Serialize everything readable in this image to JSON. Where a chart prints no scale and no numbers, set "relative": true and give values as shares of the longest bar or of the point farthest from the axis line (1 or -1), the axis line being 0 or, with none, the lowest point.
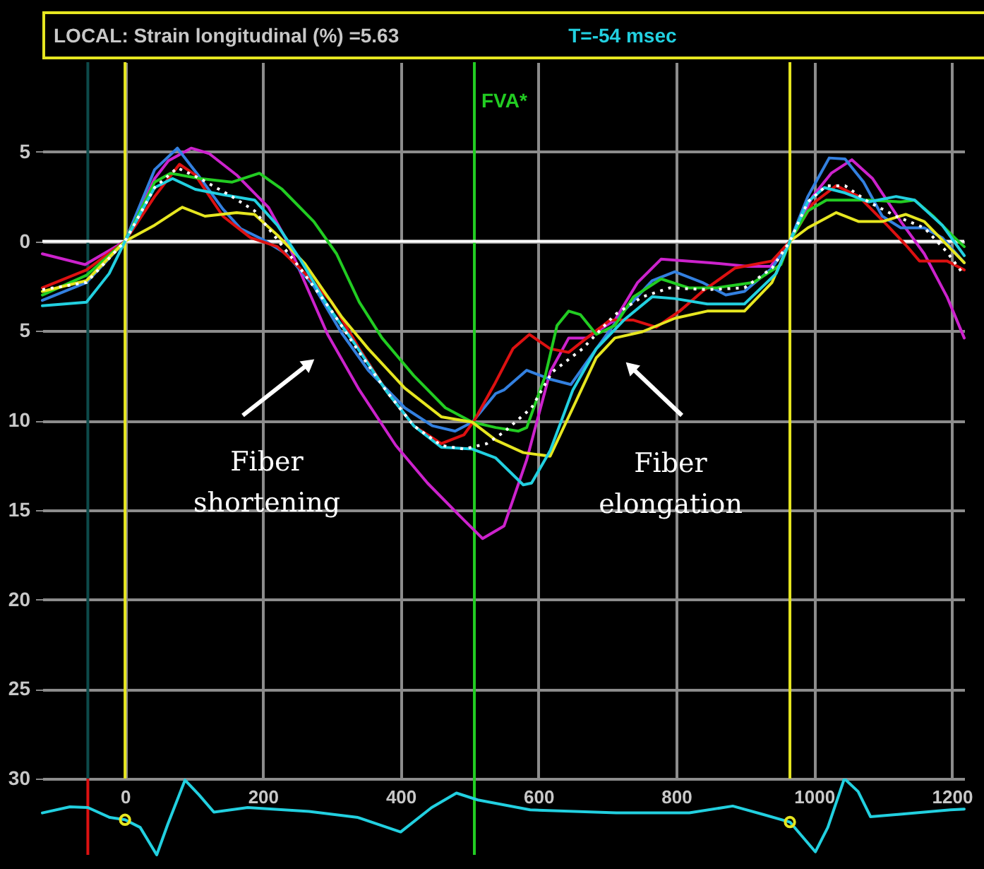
{
  "chart_data": [
    {
      "type": "line",
      "title": "LOCAL: Strain longitudinal (%) =5.63",
      "annotations": [
        "T=-54 msec",
        "Fiber shortening",
        "Fiber elongation"
      ],
      "xlim": [
        -120,
        1218
      ],
      "xticks": [
        0,
        200,
        400,
        600,
        800,
        1000,
        1200
      ],
      "tick_labels": "y",
      "ylim": [
        -30,
        10
      ],
      "yticks": [
        5,
        0,
        {
          "value": -5,
          "label": "5"
        },
        {
          "value": -10,
          "label": "10"
        },
        {
          "value": -15,
          "label": "15"
        },
        {
          "value": -20,
          "label": "20"
        },
        {
          "value": -25,
          "label": "25"
        },
        {
          "value": -30,
          "label": "30"
        }
      ],
      "grid": true,
      "ref_lines": [
        {
          "axis": "x",
          "value": -54,
          "color": "#0d4a4a"
        },
        {
          "axis": "x",
          "value": 0,
          "color": "#e6e620"
        },
        {
          "axis": "x",
          "value": 965,
          "color": "#e6e620"
        },
        {
          "axis": "x",
          "value": 507,
          "color": "#22cc22",
          "label": "FVA*"
        },
        {
          "axis": "y",
          "value": 0,
          "color": "#ffffff"
        }
      ],
      "series": [
        {
          "color": "#cc22cc",
          "x": [
            -120,
            -58,
            0,
            43,
            63,
            96,
            122,
            162,
            208,
            234,
            261,
            294,
            340,
            393,
            439,
            485,
            519,
            550,
            583,
            617,
            644,
            670,
            711,
            744,
            778,
            850,
            904,
            937,
            965,
            998,
            1025,
            1055,
            1085,
            1126,
            1160,
            1193,
            1218
          ],
          "values": [
            -0.7,
            -1.3,
            0,
            3.5,
            4.5,
            5.2,
            4.9,
            3.7,
            1.9,
            0.1,
            -2.3,
            -5.2,
            -8.3,
            -11.4,
            -13.5,
            -15.3,
            -16.6,
            -15.9,
            -12.2,
            -7.3,
            -5.4,
            -5.4,
            -4.4,
            -2.3,
            -1.0,
            -1.2,
            -1.4,
            -1.4,
            0,
            2.5,
            3.8,
            4.55,
            3.5,
            1.1,
            -0.7,
            -3.1,
            -5.4
          ]
        },
        {
          "color": "#3380e0",
          "x": [
            -120,
            -56,
            0,
            43,
            76,
            106,
            142,
            168,
            200,
            234,
            274,
            314,
            353,
            406,
            446,
            479,
            504,
            538,
            550,
            583,
            617,
            647,
            684,
            724,
            765,
            798,
            838,
            872,
            899,
            939,
            965,
            991,
            1022,
            1045,
            1072,
            1099,
            1126,
            1160,
            1186,
            1218
          ],
          "values": [
            -3.3,
            -2.3,
            0,
            4.0,
            5.2,
            3.7,
            1.8,
            0.7,
            0.1,
            -0.7,
            -2.5,
            -5.1,
            -7.2,
            -9.3,
            -10.3,
            -10.6,
            -10.1,
            -8.5,
            -8.3,
            -7.2,
            -7.7,
            -8.0,
            -6.0,
            -3.9,
            -2.2,
            -1.7,
            -2.3,
            -3.0,
            -2.8,
            -1.5,
            0,
            2.5,
            4.65,
            4.6,
            3.3,
            1.4,
            0.75,
            0.75,
            0.2,
            -1.2
          ]
        },
        {
          "color": "#dd1111",
          "x": [
            -120,
            -56,
            0,
            43,
            79,
            102,
            142,
            182,
            221,
            254,
            300,
            340,
            380,
            419,
            459,
            492,
            507,
            536,
            563,
            587,
            617,
            644,
            670,
            704,
            738,
            771,
            805,
            838,
            885,
            939,
            965,
            998,
            1032,
            1065,
            1106,
            1133,
            1153,
            1193,
            1218
          ],
          "values": [
            -2.6,
            -1.6,
            0,
            2.5,
            4.3,
            3.7,
            1.4,
            0.2,
            -0.3,
            -1.5,
            -3.4,
            -6.0,
            -8.4,
            -10.3,
            -11.3,
            -10.8,
            -10,
            -8.0,
            -6.0,
            -5.2,
            -6.0,
            -6.2,
            -5.4,
            -4.4,
            -4.4,
            -4.8,
            -3.9,
            -2.8,
            -1.5,
            -1.1,
            0,
            2.1,
            3.1,
            2.5,
            0.9,
            -0.2,
            -1.1,
            -1.1,
            -1.6
          ]
        },
        {
          "color": "#22cc22",
          "x": [
            -120,
            -56,
            0,
            43,
            66,
            109,
            155,
            195,
            228,
            274,
            307,
            340,
            373,
            419,
            465,
            504,
            538,
            571,
            583,
            610,
            627,
            644,
            661,
            684,
            711,
            738,
            778,
            818,
            859,
            912,
            952,
            965,
            991,
            1018,
            1079,
            1126,
            1146,
            1173,
            1200,
            1218
          ],
          "values": [
            -3.0,
            -1.9,
            0,
            3.3,
            3.8,
            3.5,
            3.3,
            3.8,
            2.9,
            1.1,
            -0.7,
            -3.4,
            -5.4,
            -7.5,
            -9.3,
            -10.1,
            -10.4,
            -10.6,
            -10.4,
            -7.5,
            -4.7,
            -3.9,
            -4.1,
            -5.2,
            -4.7,
            -3.1,
            -2.1,
            -2.6,
            -2.6,
            -2.3,
            -1.3,
            0,
            1.7,
            2.3,
            2.3,
            2.2,
            2.3,
            1.4,
            0.35,
            -0.3
          ]
        },
        {
          "color": "#e6e620",
          "x": [
            -120,
            -56,
            0,
            43,
            83,
            116,
            162,
            188,
            221,
            261,
            314,
            353,
            406,
            459,
            504,
            538,
            578,
            617,
            650,
            684,
            711,
            751,
            798,
            845,
            899,
            939,
            965,
            991,
            1032,
            1065,
            1099,
            1133,
            1160,
            1193,
            1218
          ],
          "values": [
            -2.8,
            -2.2,
            0,
            0.9,
            1.9,
            1.4,
            1.6,
            1.5,
            0.35,
            -1.25,
            -4.2,
            -6.0,
            -8.2,
            -9.8,
            -10.1,
            -11.1,
            -11.8,
            -12.0,
            -9.3,
            -6.5,
            -5.4,
            -5.05,
            -4.3,
            -3.9,
            -3.9,
            -2.3,
            0,
            0.75,
            1.6,
            1.1,
            1.1,
            1.5,
            1.1,
            -0.2,
            -1.2
          ]
        },
        {
          "color": "#22d0e0",
          "x": [
            -120,
            -56,
            -23,
            0,
            43,
            69,
            102,
            142,
            188,
            221,
            254,
            294,
            333,
            380,
            419,
            459,
            504,
            538,
            578,
            590,
            617,
            650,
            684,
            724,
            765,
            798,
            845,
            899,
            945,
            965,
            991,
            1015,
            1045,
            1079,
            1119,
            1146,
            1186,
            1218
          ],
          "values": [
            -3.6,
            -3.4,
            -1.8,
            0,
            3.0,
            3.5,
            2.9,
            2.6,
            2.3,
            0.9,
            -1.0,
            -3.6,
            -5.7,
            -8.4,
            -10.3,
            -11.5,
            -11.6,
            -12.1,
            -13.6,
            -13.5,
            -11.7,
            -8.3,
            -6.0,
            -4.4,
            -3.1,
            -3.2,
            -3.5,
            -3.5,
            -1.8,
            0,
            2.2,
            3.0,
            2.7,
            2.2,
            2.5,
            2.3,
            0.9,
            -0.8
          ]
        },
        {
          "color": "#ffffff",
          "line_style": "dotted",
          "x": [
            -120,
            -56,
            0,
            43,
            76,
            109,
            155,
            188,
            221,
            254,
            300,
            340,
            380,
            419,
            459,
            492,
            525,
            550,
            590,
            620,
            664,
            711,
            751,
            791,
            845,
            899,
            939,
            965,
            991,
            1018,
            1045,
            1079,
            1119,
            1160,
            1193,
            1218
          ],
          "values": [
            -2.7,
            -2.3,
            0,
            3.0,
            4.1,
            3.5,
            2.5,
            1.7,
            0.1,
            -1.5,
            -3.9,
            -6.2,
            -8.4,
            -10.3,
            -11.4,
            -11.6,
            -11.3,
            -10.65,
            -9.3,
            -7.3,
            -6.0,
            -4.1,
            -3.1,
            -2.6,
            -2.7,
            -2.6,
            -1.5,
            0,
            2.2,
            3.1,
            3.1,
            2.2,
            1.4,
            0.75,
            -0.6,
            -1.9
          ]
        }
      ]
    },
    {
      "type": "line",
      "relative": true,
      "xlim": [
        -120,
        1218
      ],
      "xticks": [
        0,
        200,
        400,
        600,
        800,
        1000,
        1200
      ],
      "ref_lines": [
        {
          "axis": "x",
          "value": -54,
          "color": "#dd1111"
        },
        {
          "axis": "x",
          "value": 507,
          "color": "#22cc22"
        }
      ],
      "series": [
        {
          "color": "#22d0e0",
          "x": [
            -120,
            -80,
            -54,
            -22,
            0,
            22,
            46,
            62,
            87,
            107,
            129,
            178,
            267,
            338,
            400,
            445,
            481,
            512,
            588,
            713,
            819,
            882,
            926,
            965,
            1002,
            1020,
            1044,
            1064,
            1082,
            1122,
            1198,
            1218
          ],
          "values": [
            0.55,
            0.63,
            0.62,
            0.49,
            0.46,
            0.36,
            0,
            0.4,
            0.98,
            0.79,
            0.56,
            0.62,
            0.57,
            0.49,
            0.3,
            0.62,
            0.81,
            0.72,
            0.59,
            0.55,
            0.55,
            0.64,
            0.53,
            0.43,
            0.04,
            0.36,
            1.0,
            0.83,
            0.5,
            0.53,
            0.59,
            0.6
          ]
        },
        {
          "type": "scatter",
          "marker": "circle",
          "color": "#e6e620",
          "x": [
            0,
            965
          ],
          "values": [
            0.46,
            0.43
          ]
        }
      ]
    }
  ]
}
